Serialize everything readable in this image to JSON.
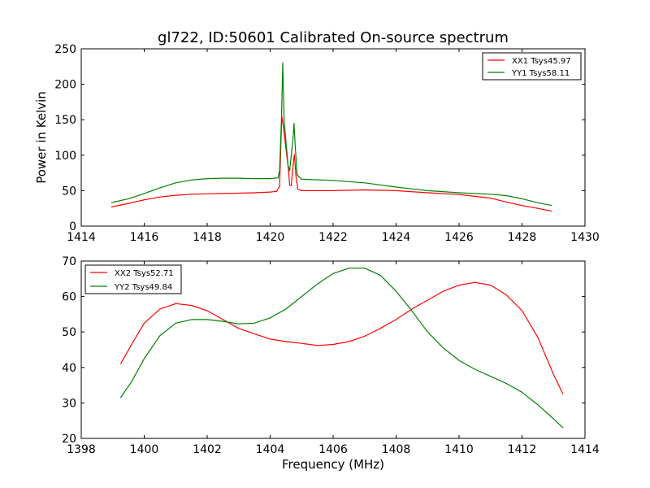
{
  "chart_data": [
    {
      "type": "line",
      "title": "gl722, ID:50601 Calibrated On-source spectrum",
      "xlabel": "",
      "ylabel": "Power in Kelvin",
      "xlim": [
        1414,
        1430
      ],
      "ylim": [
        0,
        250
      ],
      "xticks": [
        1414,
        1416,
        1418,
        1420,
        1422,
        1424,
        1426,
        1428,
        1430
      ],
      "yticks": [
        0,
        50,
        100,
        150,
        200,
        250
      ],
      "legend_position": "top-right",
      "grid": false,
      "series": [
        {
          "name": "XX1 Tsys45.97",
          "color": "#ff0000",
          "points": [
            [
              1414.95,
              27
            ],
            [
              1415.5,
              32
            ],
            [
              1416,
              37
            ],
            [
              1416.5,
              41
            ],
            [
              1417,
              43.5
            ],
            [
              1417.5,
              45
            ],
            [
              1418,
              45.5
            ],
            [
              1418.5,
              46
            ],
            [
              1419,
              46.5
            ],
            [
              1419.5,
              47
            ],
            [
              1420,
              48
            ],
            [
              1420.2,
              49
            ],
            [
              1420.3,
              56
            ],
            [
              1420.37,
              155
            ],
            [
              1420.42,
              140
            ],
            [
              1420.5,
              110
            ],
            [
              1420.58,
              80
            ],
            [
              1420.62,
              58
            ],
            [
              1420.67,
              57
            ],
            [
              1420.72,
              82
            ],
            [
              1420.77,
              101
            ],
            [
              1420.82,
              70
            ],
            [
              1420.88,
              52
            ],
            [
              1421,
              50
            ],
            [
              1422,
              50
            ],
            [
              1423,
              51
            ],
            [
              1424,
              50
            ],
            [
              1425,
              47
            ],
            [
              1426,
              44.5
            ],
            [
              1426.5,
              42
            ],
            [
              1427,
              39.5
            ],
            [
              1427.5,
              34
            ],
            [
              1428,
              29
            ],
            [
              1428.5,
              25
            ],
            [
              1428.95,
              21
            ]
          ]
        },
        {
          "name": "YY1 Tsys58.11",
          "color": "#008000",
          "points": [
            [
              1414.95,
              33
            ],
            [
              1415.5,
              38.5
            ],
            [
              1416,
              46
            ],
            [
              1416.5,
              54
            ],
            [
              1417,
              61
            ],
            [
              1417.5,
              65
            ],
            [
              1418,
              67
            ],
            [
              1418.5,
              67.5
            ],
            [
              1419,
              67.5
            ],
            [
              1419.5,
              67
            ],
            [
              1420,
              67
            ],
            [
              1420.25,
              68
            ],
            [
              1420.3,
              78
            ],
            [
              1420.36,
              150
            ],
            [
              1420.4,
              230
            ],
            [
              1420.44,
              150
            ],
            [
              1420.5,
              120
            ],
            [
              1420.57,
              85
            ],
            [
              1420.62,
              78
            ],
            [
              1420.67,
              100
            ],
            [
              1420.72,
              120
            ],
            [
              1420.76,
              145
            ],
            [
              1420.8,
              110
            ],
            [
              1420.86,
              72
            ],
            [
              1421,
              66
            ],
            [
              1422,
              64.5
            ],
            [
              1423,
              61
            ],
            [
              1424,
              55
            ],
            [
              1425,
              50
            ],
            [
              1426,
              47
            ],
            [
              1427,
              45
            ],
            [
              1427.5,
              43
            ],
            [
              1428,
              38.5
            ],
            [
              1428.5,
              33
            ],
            [
              1428.95,
              29
            ]
          ]
        }
      ]
    },
    {
      "type": "line",
      "title": "",
      "xlabel": "Frequency (MHz)",
      "ylabel": "",
      "xlim": [
        1398,
        1414
      ],
      "ylim": [
        20,
        70
      ],
      "xticks": [
        1398,
        1400,
        1402,
        1404,
        1406,
        1408,
        1410,
        1412,
        1414
      ],
      "yticks": [
        20,
        30,
        40,
        50,
        60,
        70
      ],
      "legend_position": "top-left",
      "grid": false,
      "series": [
        {
          "name": "XX2 Tsys52.71",
          "color": "#ff0000",
          "points": [
            [
              1399.25,
              41
            ],
            [
              1399.6,
              46.5
            ],
            [
              1400,
              52.5
            ],
            [
              1400.5,
              56.5
            ],
            [
              1401,
              58
            ],
            [
              1401.5,
              57.5
            ],
            [
              1402,
              56
            ],
            [
              1402.5,
              53.5
            ],
            [
              1403,
              51
            ],
            [
              1403.5,
              49.5
            ],
            [
              1404,
              48
            ],
            [
              1404.5,
              47.3
            ],
            [
              1405,
              46.8
            ],
            [
              1405.5,
              46.2
            ],
            [
              1406,
              46.5
            ],
            [
              1406.5,
              47.3
            ],
            [
              1407,
              48.8
            ],
            [
              1407.5,
              51
            ],
            [
              1408,
              53.5
            ],
            [
              1408.5,
              56.5
            ],
            [
              1409,
              59
            ],
            [
              1409.5,
              61.5
            ],
            [
              1410,
              63.2
            ],
            [
              1410.5,
              64
            ],
            [
              1411,
              63.2
            ],
            [
              1411.5,
              60.5
            ],
            [
              1412,
              56
            ],
            [
              1412.5,
              48.5
            ],
            [
              1413,
              38
            ],
            [
              1413.3,
              32.5
            ]
          ]
        },
        {
          "name": "YY2 Tsys49.84",
          "color": "#008000",
          "points": [
            [
              1399.25,
              31.5
            ],
            [
              1399.6,
              36
            ],
            [
              1400,
              42.5
            ],
            [
              1400.5,
              49
            ],
            [
              1401,
              52.5
            ],
            [
              1401.5,
              53.5
            ],
            [
              1402,
              53.5
            ],
            [
              1402.5,
              53
            ],
            [
              1403,
              52.3
            ],
            [
              1403.5,
              52.5
            ],
            [
              1404,
              54
            ],
            [
              1404.5,
              56.5
            ],
            [
              1405,
              60
            ],
            [
              1405.5,
              63.5
            ],
            [
              1406,
              66.5
            ],
            [
              1406.5,
              68
            ],
            [
              1407,
              68
            ],
            [
              1407.5,
              66
            ],
            [
              1408,
              61.5
            ],
            [
              1408.5,
              56
            ],
            [
              1409,
              50
            ],
            [
              1409.5,
              45.5
            ],
            [
              1410,
              42
            ],
            [
              1410.5,
              39.5
            ],
            [
              1411,
              37.5
            ],
            [
              1411.5,
              35.5
            ],
            [
              1412,
              33
            ],
            [
              1412.5,
              29.5
            ],
            [
              1413,
              25.5
            ],
            [
              1413.3,
              23
            ]
          ]
        }
      ]
    }
  ]
}
